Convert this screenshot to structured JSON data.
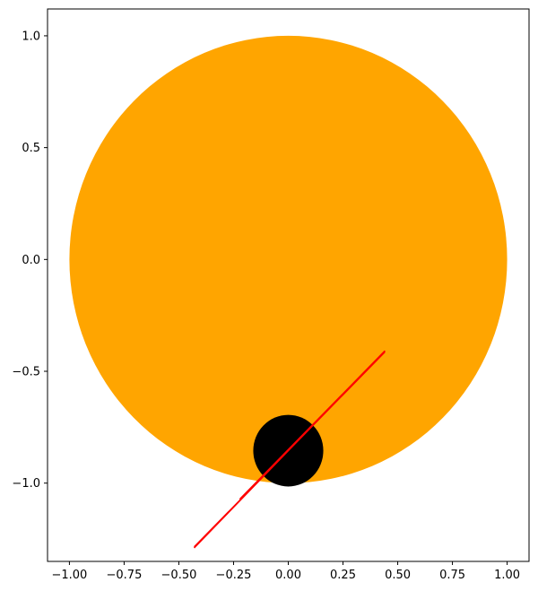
{
  "chart_data": {
    "type": "scatter",
    "title": "",
    "xlabel": "",
    "ylabel": "",
    "xlim": [
      -1.1,
      1.1
    ],
    "ylim": [
      -1.35,
      1.12
    ],
    "grid": false,
    "aspect": "equal",
    "x_ticks": [
      {
        "value": -1.0,
        "label": "−1.00"
      },
      {
        "value": -0.75,
        "label": "−0.75"
      },
      {
        "value": -0.5,
        "label": "−0.50"
      },
      {
        "value": -0.25,
        "label": "−0.25"
      },
      {
        "value": 0.0,
        "label": "0.00"
      },
      {
        "value": 0.25,
        "label": "0.25"
      },
      {
        "value": 0.5,
        "label": "0.50"
      },
      {
        "value": 0.75,
        "label": "0.75"
      },
      {
        "value": 1.0,
        "label": "1.00"
      }
    ],
    "y_ticks": [
      {
        "value": 1.0,
        "label": "1.0"
      },
      {
        "value": 0.5,
        "label": "0.5"
      },
      {
        "value": 0.0,
        "label": "0.0"
      },
      {
        "value": -0.5,
        "label": "−0.5"
      },
      {
        "value": -1.0,
        "label": "−1.0"
      }
    ],
    "shapes": [
      {
        "kind": "circle",
        "name": "large-circle",
        "cx": 0.0,
        "cy": 0.0,
        "r": 1.0,
        "color": "#ffa500"
      },
      {
        "kind": "circle",
        "name": "small-circle",
        "cx": 0.0,
        "cy": -0.855,
        "r": 0.16,
        "color": "#000000"
      }
    ],
    "series": [
      {
        "kind": "line",
        "color": "#ff0000",
        "points": [
          [
            -0.43,
            -1.29
          ],
          [
            0.44,
            -0.41
          ],
          [
            0.2,
            -0.65
          ],
          [
            -0.22,
            -1.07
          ],
          [
            0.44,
            -0.415
          ],
          [
            -0.43,
            -1.285
          ]
        ]
      }
    ]
  }
}
